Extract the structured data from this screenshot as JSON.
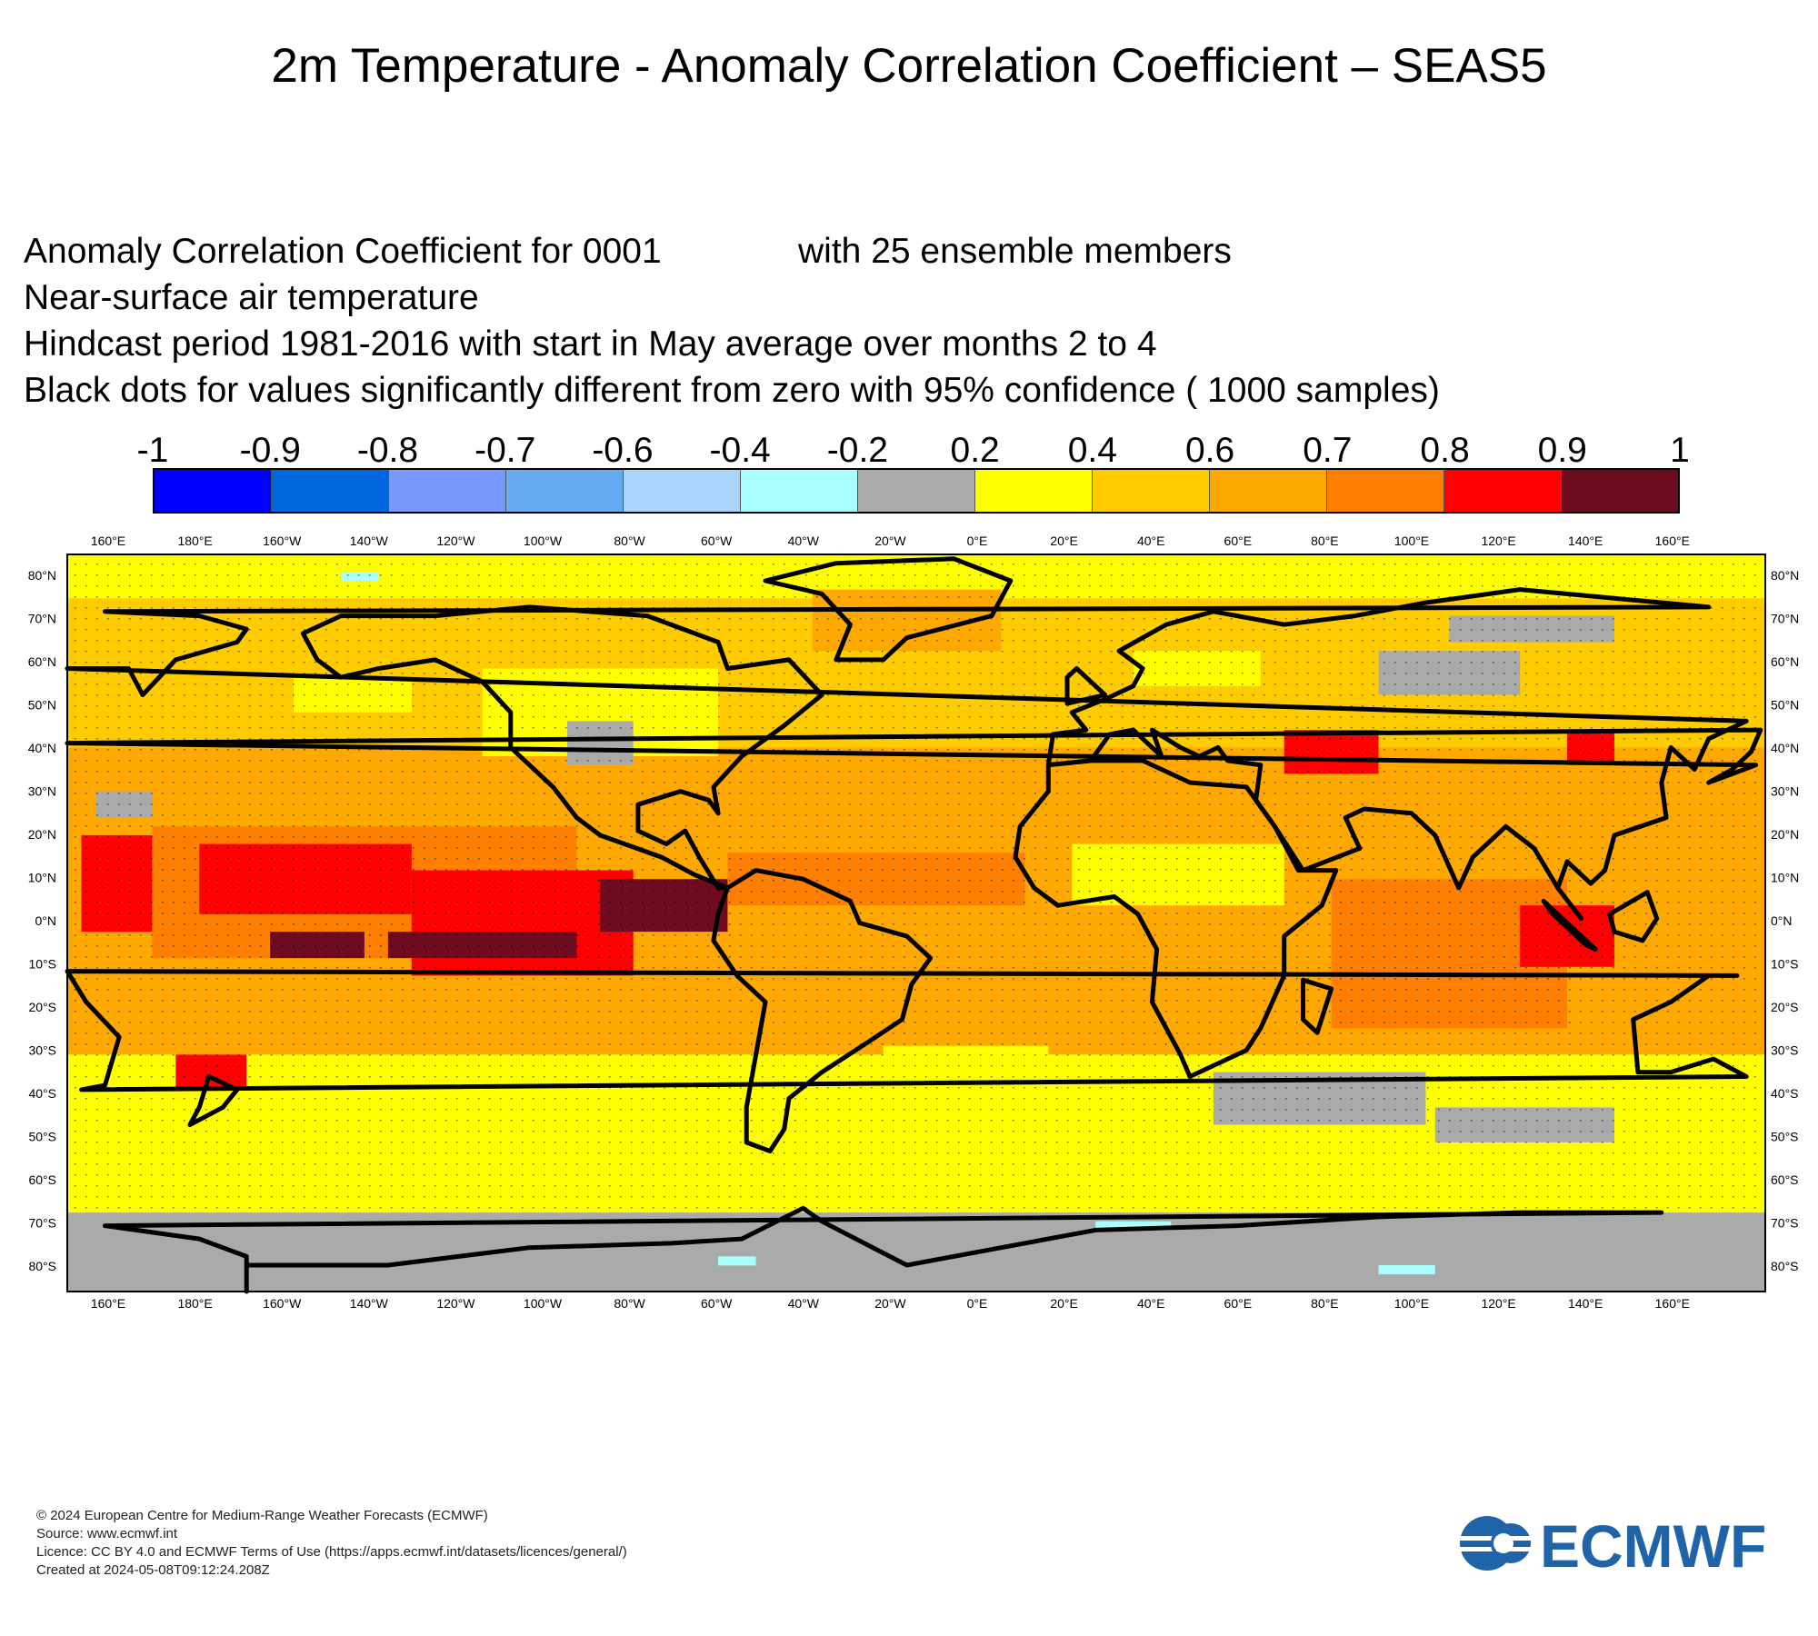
{
  "title": "2m Temperature - Anomaly Correlation Coefficient – SEAS5",
  "header": {
    "line1": "Anomaly Correlation Coefficient for 0001",
    "members": "with 25 ensemble members",
    "line2": "Near-surface air temperature",
    "line3": "Hindcast period 1981-2016 with start in May average over months  2 to  4",
    "line4": "Black dots for values significantly different from zero with 95% confidence ( 1000 samples)"
  },
  "colorbar": {
    "labels": [
      "-1",
      "-0.9",
      "-0.8",
      "-0.7",
      "-0.6",
      "-0.4",
      "-0.2",
      "0.2",
      "0.4",
      "0.6",
      "0.7",
      "0.8",
      "0.9",
      "1"
    ],
    "colors": [
      "#0000ff",
      "#0066dd",
      "#7799ff",
      "#66aaf2",
      "#aad4fa",
      "#aaffff",
      "#aaaaaa",
      "#ffff00",
      "#ffcc00",
      "#ffa800",
      "#ff7f00",
      "#ff0000",
      "#6e0b1e"
    ]
  },
  "map": {
    "lon_labels": [
      "160°E",
      "180°E",
      "160°W",
      "140°W",
      "120°W",
      "100°W",
      "80°W",
      "60°W",
      "40°W",
      "20°W",
      "0°E",
      "20°E",
      "40°E",
      "60°E",
      "80°E",
      "100°E",
      "120°E",
      "140°E",
      "160°E"
    ],
    "lat_labels": [
      "80°N",
      "70°N",
      "60°N",
      "50°N",
      "40°N",
      "30°N",
      "20°N",
      "10°N",
      "0°N",
      "10°S",
      "20°S",
      "30°S",
      "40°S",
      "50°S",
      "60°S",
      "70°S",
      "80°S"
    ],
    "field_regions": [
      {
        "name": "arctic",
        "category": "0.2–0.4"
      },
      {
        "name": "antarctica",
        "category": "-0.2–0.2"
      },
      {
        "name": "tropical-pacific",
        "category": "0.8–0.9"
      },
      {
        "name": "east-tropical-pacific",
        "category": "0.9–1"
      },
      {
        "name": "tropical-atlantic",
        "category": "0.6–0.7"
      },
      {
        "name": "indian-ocean",
        "category": "0.7–0.8"
      },
      {
        "name": "southern-ocean",
        "category": "0.2–0.4"
      }
    ]
  },
  "footer": {
    "copyright": "© 2024 European Centre for Medium-Range Weather Forecasts (ECMWF)",
    "source": "Source: www.ecmwf.int",
    "licence": "Licence: CC BY 4.0 and ECMWF Terms of Use (https://apps.ecmwf.int/datasets/licences/general/)",
    "created": "Created at 2024-05-08T09:12:24.208Z"
  },
  "logo": {
    "text": "ECMWF",
    "color": "#1f64a8"
  }
}
